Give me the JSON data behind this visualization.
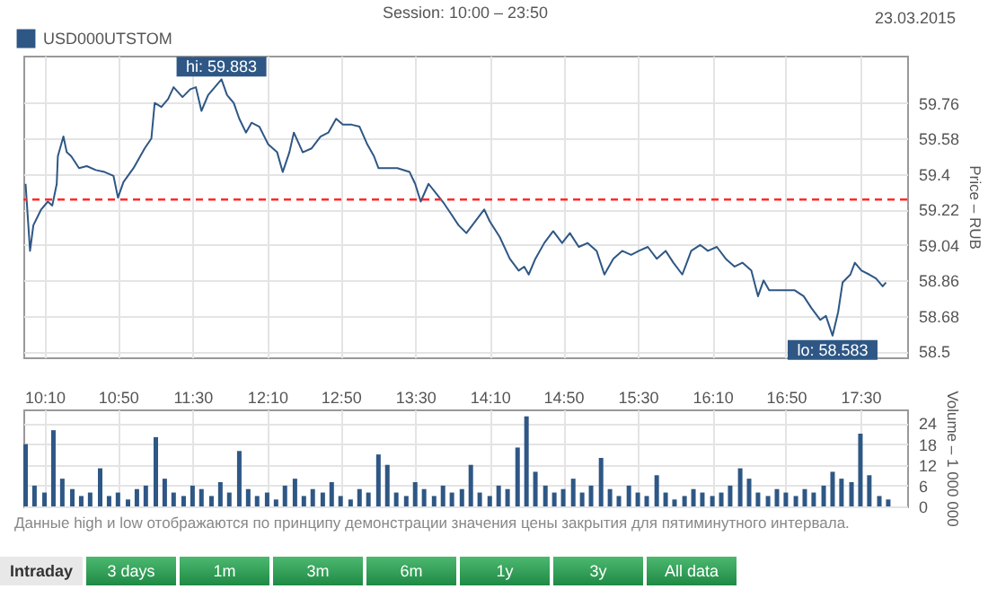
{
  "chart_data": [
    {
      "type": "line",
      "title": "Session: 10:00 – 23:50",
      "ylabel": "Price – RUB",
      "legend": "top left",
      "grid": true,
      "tick_labels": "y",
      "xlim": [
        9.98,
        17.92
      ],
      "xticks": [
        10.17,
        10.83,
        11.5,
        12.17,
        12.83,
        13.5,
        14.17,
        14.83,
        15.5,
        16.17,
        16.83,
        17.5
      ],
      "ylim": [
        58.47,
        60.0
      ],
      "yticks": [
        58.5,
        58.68,
        58.86,
        59.04,
        59.22,
        59.4,
        59.58,
        59.76
      ],
      "x": [
        10.0,
        10.04,
        10.07,
        10.14,
        10.2,
        10.24,
        10.28,
        10.29,
        10.34,
        10.37,
        10.41,
        10.48,
        10.55,
        10.63,
        10.71,
        10.79,
        10.83,
        10.88,
        10.97,
        11.07,
        11.13,
        11.16,
        11.22,
        11.28,
        11.33,
        11.41,
        11.48,
        11.53,
        11.58,
        11.64,
        11.7,
        11.76,
        11.81,
        11.87,
        11.92,
        11.98,
        12.03,
        12.1,
        12.18,
        12.26,
        12.31,
        12.37,
        12.41,
        12.49,
        12.57,
        12.65,
        12.72,
        12.79,
        12.85,
        12.93,
        13.0,
        13.07,
        13.13,
        13.17,
        13.27,
        13.34,
        13.45,
        13.5,
        13.55,
        13.62,
        13.69,
        13.76,
        13.82,
        13.89,
        13.96,
        14.12,
        14.17,
        14.26,
        14.35,
        14.43,
        14.48,
        14.52,
        14.58,
        14.66,
        14.74,
        14.82,
        14.89,
        14.97,
        15.05,
        15.13,
        15.2,
        15.28,
        15.36,
        15.44,
        15.51,
        15.59,
        15.67,
        15.75,
        15.82,
        15.9,
        15.98,
        16.06,
        16.13,
        16.21,
        16.29,
        16.37,
        16.44,
        16.52,
        16.58,
        16.63,
        16.68,
        16.75,
        16.83,
        16.91,
        16.99,
        17.06,
        17.14,
        17.19,
        17.25,
        17.3,
        17.34,
        17.41,
        17.45,
        17.51,
        17.58,
        17.64,
        17.7,
        17.73
      ],
      "series": [
        {
          "name": "USD000UTSTOM",
          "color": "#2e5785",
          "values": [
            59.35,
            59.01,
            59.14,
            59.22,
            59.26,
            59.24,
            59.35,
            59.49,
            59.59,
            59.51,
            59.49,
            59.43,
            59.44,
            59.42,
            59.41,
            59.39,
            59.28,
            59.36,
            59.43,
            59.53,
            59.58,
            59.76,
            59.74,
            59.78,
            59.84,
            59.79,
            59.83,
            59.84,
            59.72,
            59.8,
            59.84,
            59.88,
            59.8,
            59.76,
            59.68,
            59.61,
            59.66,
            59.64,
            59.55,
            59.51,
            59.41,
            59.51,
            59.61,
            59.51,
            59.53,
            59.59,
            59.61,
            59.68,
            59.65,
            59.65,
            59.64,
            59.55,
            59.49,
            59.43,
            59.43,
            59.43,
            59.41,
            59.35,
            59.26,
            59.35,
            59.3,
            59.25,
            59.2,
            59.14,
            59.1,
            59.22,
            59.16,
            59.08,
            58.97,
            58.91,
            58.93,
            58.89,
            58.97,
            59.05,
            59.11,
            59.05,
            59.1,
            59.03,
            59.05,
            59.01,
            58.89,
            58.97,
            59.01,
            58.99,
            59.01,
            59.03,
            58.97,
            59.01,
            58.95,
            58.89,
            59.01,
            59.04,
            59.01,
            59.03,
            58.97,
            58.93,
            58.95,
            58.91,
            58.78,
            58.86,
            58.81,
            58.81,
            58.81,
            58.81,
            58.78,
            58.72,
            58.66,
            58.68,
            58.58,
            58.7,
            58.85,
            58.89,
            58.95,
            58.91,
            58.89,
            58.87,
            58.83,
            58.85
          ]
        }
      ],
      "ref_lines": [
        {
          "axis": "y",
          "value": 59.27,
          "color": "#ff2a2a",
          "line_style": "dashed"
        }
      ],
      "annotations": [
        {
          "text": "hi: 59.883",
          "x": 11.76,
          "y": 59.88
        },
        {
          "text": "lo: 58.583",
          "x": 17.25,
          "y": 58.58
        },
        "23.03.2015"
      ]
    },
    {
      "type": "bar",
      "ylabel": "Volume – 1 000 000",
      "grid": true,
      "xlim": [
        9.98,
        17.92
      ],
      "xticks": [
        {
          "value": 10.17,
          "label": "10:10"
        },
        {
          "value": 10.83,
          "label": "10:50"
        },
        {
          "value": 11.5,
          "label": "11:30"
        },
        {
          "value": 12.17,
          "label": "12:10"
        },
        {
          "value": 12.83,
          "label": "12:50"
        },
        {
          "value": 13.5,
          "label": "13:30"
        },
        {
          "value": 14.17,
          "label": "14:10"
        },
        {
          "value": 14.83,
          "label": "14:50"
        },
        {
          "value": 15.5,
          "label": "15:30"
        },
        {
          "value": 16.17,
          "label": "16:10"
        },
        {
          "value": 16.83,
          "label": "16:50"
        },
        {
          "value": 17.5,
          "label": "17:30"
        }
      ],
      "ylim": [
        0,
        28
      ],
      "yticks": [
        0,
        6,
        12,
        18,
        24
      ],
      "x": [
        10.0,
        10.08,
        10.17,
        10.25,
        10.33,
        10.42,
        10.5,
        10.58,
        10.67,
        10.75,
        10.83,
        10.92,
        11.0,
        11.08,
        11.17,
        11.25,
        11.33,
        11.42,
        11.5,
        11.58,
        11.67,
        11.75,
        11.83,
        11.92,
        12.0,
        12.08,
        12.17,
        12.25,
        12.33,
        12.42,
        12.5,
        12.58,
        12.67,
        12.75,
        12.83,
        12.92,
        13.0,
        13.08,
        13.17,
        13.25,
        13.33,
        13.42,
        13.5,
        13.58,
        13.67,
        13.75,
        13.83,
        13.92,
        14.0,
        14.08,
        14.17,
        14.25,
        14.33,
        14.42,
        14.5,
        14.58,
        14.67,
        14.75,
        14.83,
        14.92,
        15.0,
        15.08,
        15.17,
        15.25,
        15.33,
        15.42,
        15.5,
        15.58,
        15.67,
        15.75,
        15.83,
        15.92,
        16.0,
        16.08,
        16.17,
        16.25,
        16.33,
        16.42,
        16.5,
        16.58,
        16.67,
        16.75,
        16.83,
        16.92,
        17.0,
        17.08,
        17.17,
        17.25,
        17.33,
        17.42,
        17.5,
        17.58,
        17.67,
        17.75
      ],
      "series": [
        {
          "color": "#2e5785",
          "values": [
            18,
            6,
            4,
            22,
            8,
            5,
            3,
            4,
            11,
            3,
            4,
            2,
            5,
            6,
            20,
            8,
            4,
            3,
            6,
            5,
            3,
            7,
            4,
            16,
            5,
            3,
            4,
            2,
            6,
            8,
            3,
            5,
            4,
            7,
            3,
            2,
            5,
            4,
            15,
            12,
            4,
            3,
            7,
            5,
            3,
            6,
            4,
            5,
            12,
            4,
            3,
            6,
            5,
            17,
            26,
            10,
            6,
            4,
            5,
            8,
            4,
            6,
            14,
            5,
            3,
            6,
            4,
            3,
            9,
            4,
            2,
            3,
            5,
            4,
            3,
            4,
            6,
            11,
            8,
            4,
            3,
            5,
            4,
            3,
            5,
            4,
            6,
            10,
            8,
            7,
            21,
            9,
            3,
            2
          ]
        }
      ],
      "annotations": [
        "Данные high и low отображаются по принципу демонстрации значения цены закрытия для пятиминутного интервала.",
        "Intraday",
        "3 days",
        "1m",
        "3m",
        "6m",
        "1y",
        "3y",
        "All data"
      ]
    }
  ]
}
